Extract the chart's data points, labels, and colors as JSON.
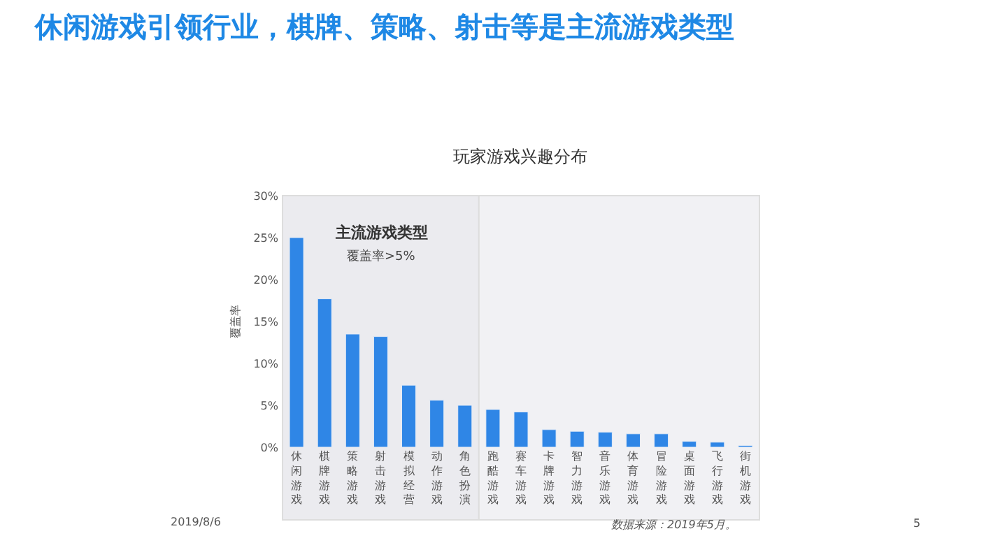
{
  "chart_data": {
    "type": "bar",
    "title": "休闲游戏引领行业，棋牌、策略、射击等是主流游戏类型",
    "subtitle": "玩家游戏兴趣分布",
    "ylabel": "覆盖率",
    "categories": [
      "休闲游戏",
      "棋牌游戏",
      "策略游戏",
      "射击游戏",
      "模拟经营",
      "动作游戏",
      "角色扮演",
      "跑酷游戏",
      "赛车游戏",
      "卡牌游戏",
      "智力游戏",
      "音乐游戏",
      "体育游戏",
      "冒险游戏",
      "桌面游戏",
      "飞行游戏",
      "街机游戏"
    ],
    "values": [
      25.0,
      17.7,
      13.5,
      13.2,
      7.4,
      5.6,
      5.0,
      4.5,
      4.2,
      2.1,
      1.9,
      1.8,
      1.6,
      1.6,
      0.7,
      0.6,
      0.2
    ],
    "color": "#2f86e6",
    "ylim": [
      0,
      30
    ],
    "yticks": [
      {
        "value": 0,
        "label": "0%"
      },
      {
        "value": 5,
        "label": "5%"
      },
      {
        "value": 10,
        "label": "10%"
      },
      {
        "value": 15,
        "label": "15%"
      },
      {
        "value": 20,
        "label": "20%"
      },
      {
        "value": 25,
        "label": "25%"
      },
      {
        "value": 30,
        "label": "30%"
      }
    ],
    "bands": [
      {
        "axis": "x",
        "from": "休闲游戏",
        "to": "角色扮演",
        "label": "主流游戏类型",
        "color": "#ebebef"
      },
      {
        "axis": "x",
        "from": "跑酷游戏",
        "to": "街机游戏",
        "color": "#f1f1f4"
      }
    ],
    "annotations": [
      "覆盖率>5%",
      "数据来源：2019年5月。",
      "2019/8/6",
      "5"
    ],
    "grid": false
  }
}
